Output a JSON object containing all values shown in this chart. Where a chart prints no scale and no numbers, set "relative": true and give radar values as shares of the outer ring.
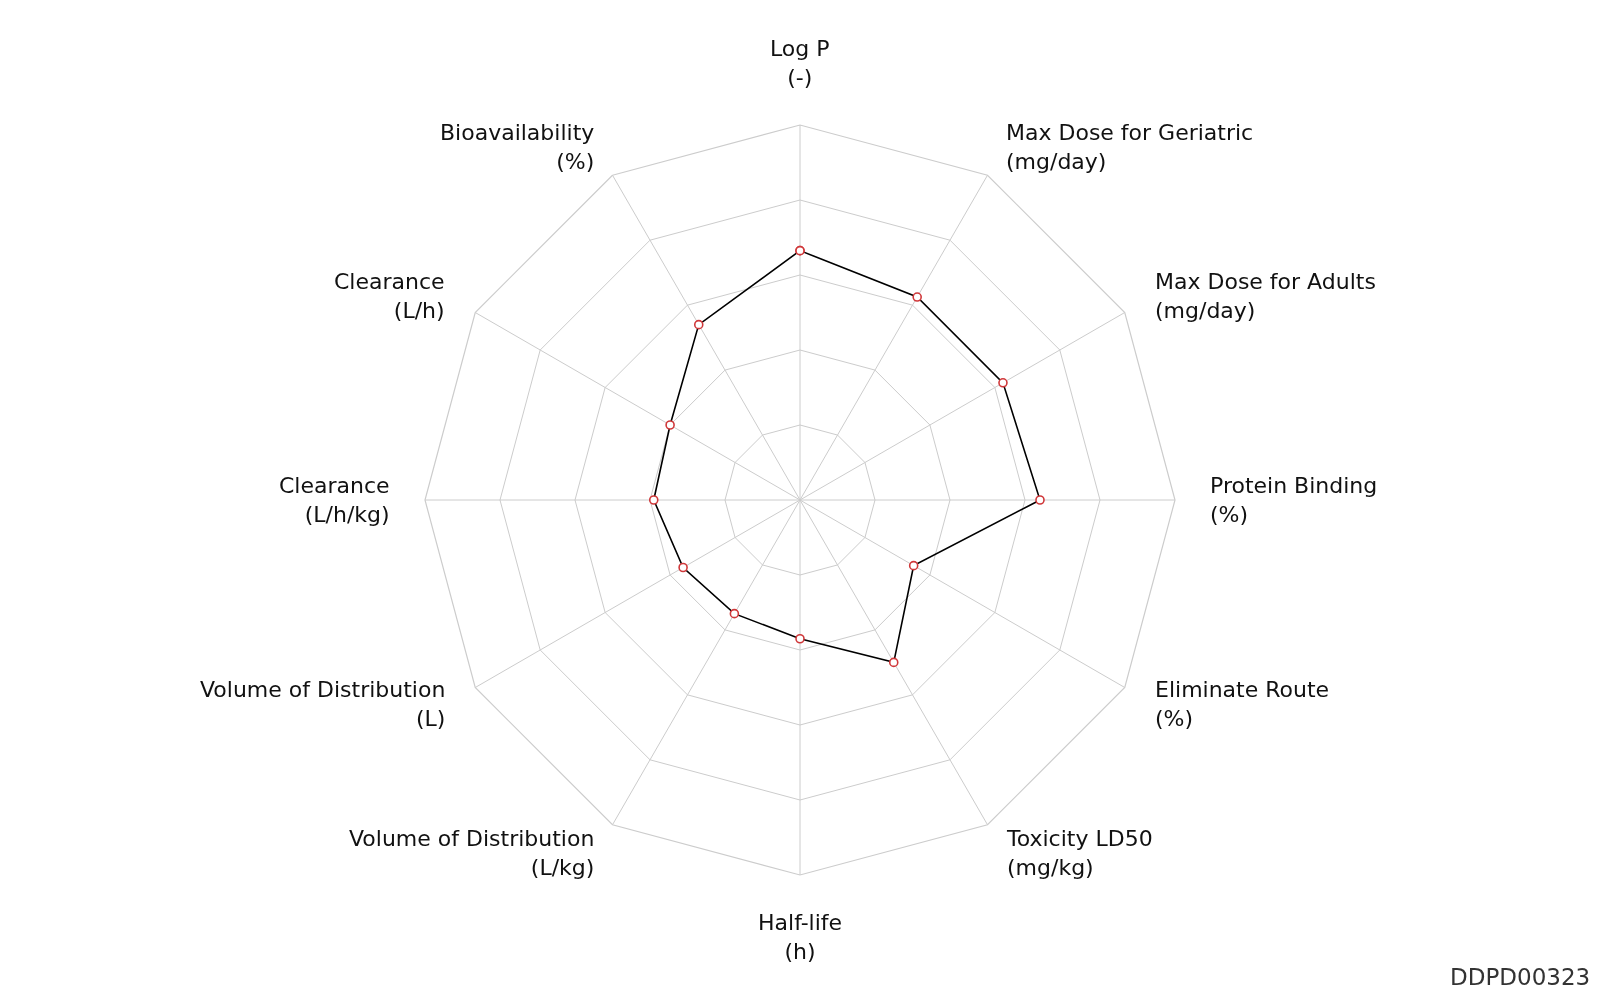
{
  "chart_data": {
    "type": "radar",
    "relative": true,
    "categories": [
      "Log P\n(-)",
      "Max Dose for Geriatric\n(mg/day)",
      "Max Dose for Adults\n(mg/day)",
      "Protein Binding\n(%)",
      "Eliminate Route\n(%)",
      "Toxicity LD50\n(mg/kg)",
      "Half-life\n(h)",
      "Volume of Distribution\n(L/kg)",
      "Volume of Distribution\n(L)",
      "Clearance\n(L/h/kg)",
      "Clearance\n(L/h)",
      "Bioavailability\n(%)"
    ],
    "series": [
      {
        "color": "#000000",
        "colors": [
          "#d0383a",
          "#d0383a",
          "#d0383a",
          "#d0383a",
          "#d0383a",
          "#d0383a",
          "#d0383a",
          "#d0383a",
          "#d0383a",
          "#d0383a",
          "#d0383a",
          "#d0383a"
        ],
        "values": [
          0.665,
          0.625,
          0.625,
          0.64,
          0.35,
          0.5,
          0.37,
          0.35,
          0.36,
          0.39,
          0.4,
          0.54
        ]
      }
    ],
    "grid": true,
    "marker": "circle",
    "line_style": "solid",
    "annotations": [
      "DDPD00323"
    ]
  }
}
